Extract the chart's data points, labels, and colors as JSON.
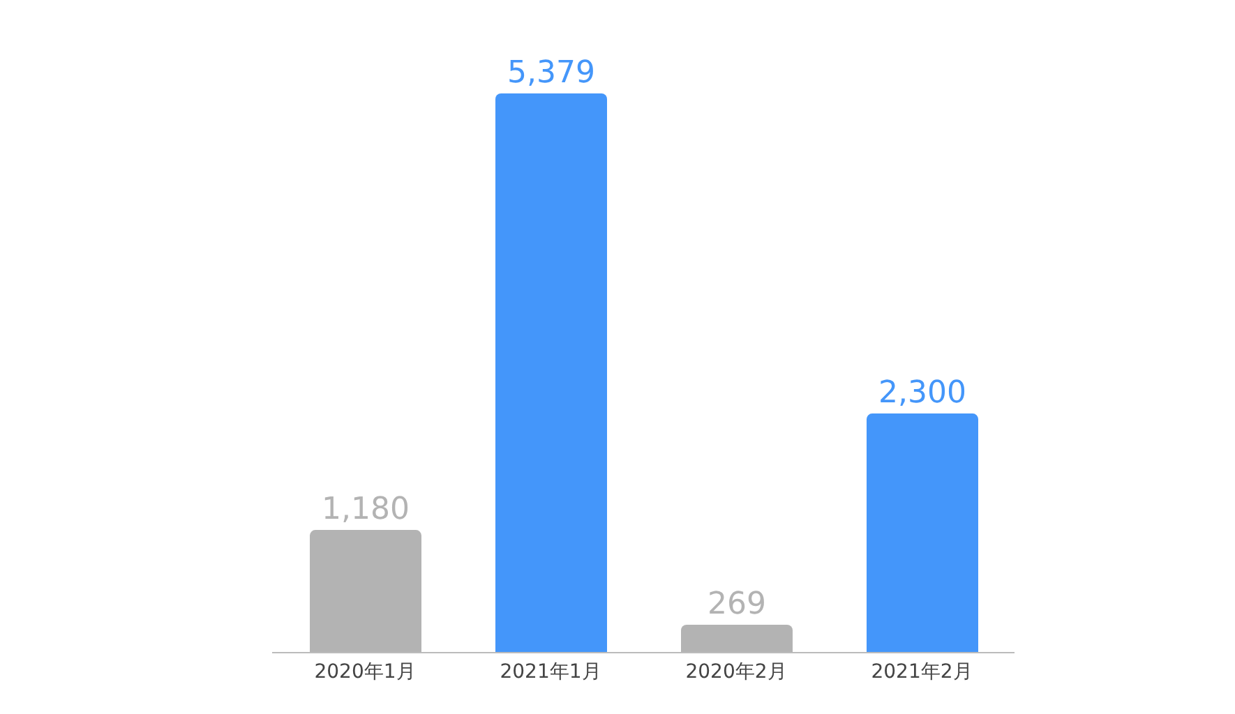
{
  "chart_data": {
    "type": "bar",
    "categories": [
      "2020年1月",
      "2021年1月",
      "2020年2月",
      "2021年2月"
    ],
    "values": [
      1180,
      5379,
      269,
      2300
    ],
    "value_labels": [
      "1,180",
      "5,379",
      "269",
      "2,300"
    ],
    "colors": [
      "#b3b3b3",
      "#4496fa",
      "#b3b3b3",
      "#4496fa"
    ]
  }
}
